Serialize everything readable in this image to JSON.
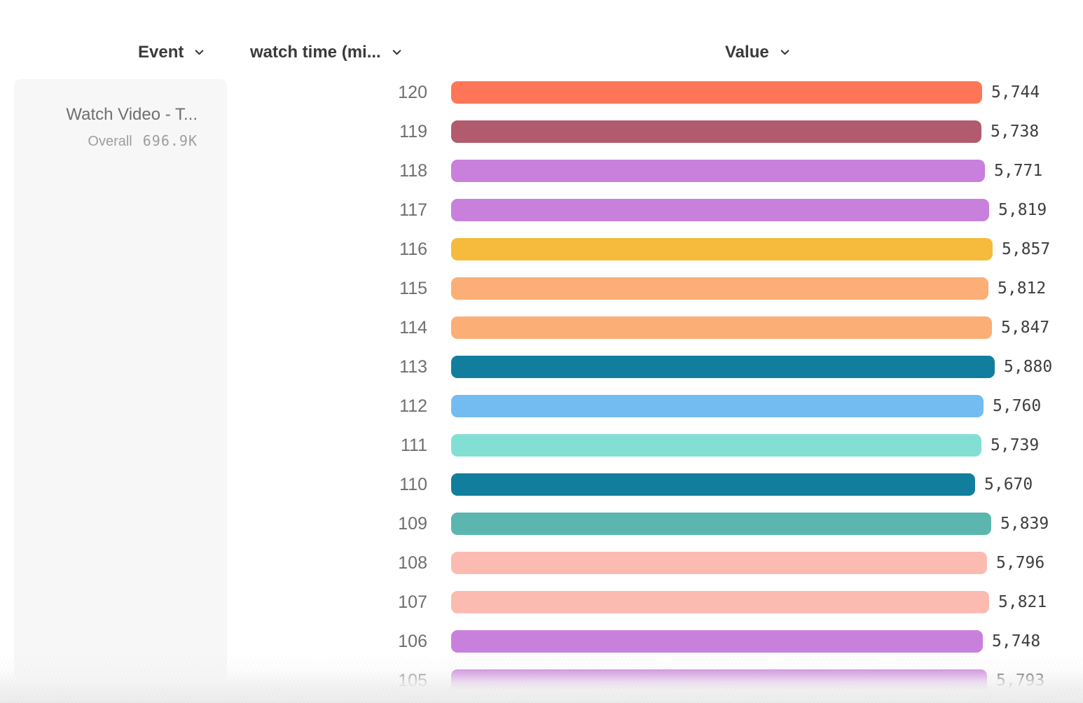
{
  "header": {
    "columns": [
      {
        "id": "event",
        "label": "Event"
      },
      {
        "id": "breakdown",
        "label": "watch time (mi..."
      },
      {
        "id": "value",
        "label": "Value"
      }
    ]
  },
  "legend": {
    "event_name": "Watch Video - T...",
    "overall_label": "Overall",
    "overall_value": "696.9K"
  },
  "colors": {
    "header_text": "#3a3a3a",
    "tick_text": "#6e6e6e",
    "value_text": "#3e3e3e",
    "legend_bg": "#f7f7f7",
    "legend_title_text": "#6f6f6f",
    "legend_sub_text": "#9e9e9e"
  },
  "chart_data": {
    "type": "bar",
    "orientation": "horizontal",
    "title": "",
    "xlabel": "Value",
    "ylabel": "watch time (min)",
    "xlim": [
      0,
      5880
    ],
    "grid": false,
    "legend_position": "left",
    "categories": [
      "120",
      "119",
      "118",
      "117",
      "116",
      "115",
      "114",
      "113",
      "112",
      "111",
      "110",
      "109",
      "108",
      "107",
      "106",
      "105"
    ],
    "values": [
      5744,
      5738,
      5771,
      5819,
      5857,
      5812,
      5847,
      5880,
      5760,
      5739,
      5670,
      5839,
      5796,
      5821,
      5748,
      5793
    ],
    "value_labels": [
      "5,744",
      "5,738",
      "5,771",
      "5,819",
      "5,857",
      "5,812",
      "5,847",
      "5,880",
      "5,760",
      "5,739",
      "5,670",
      "5,839",
      "5,796",
      "5,821",
      "5,748",
      "5,793"
    ],
    "bar_colors": [
      "#FF7557",
      "#B25A6E",
      "#C97FDC",
      "#C97FDC",
      "#F6BA3C",
      "#FBAE76",
      "#FBAE76",
      "#127E9E",
      "#73BCF2",
      "#83DFD4",
      "#127E9E",
      "#5BB6AF",
      "#FCBBB1",
      "#FCBBB1",
      "#C97FDC",
      "#C97FDC"
    ]
  }
}
